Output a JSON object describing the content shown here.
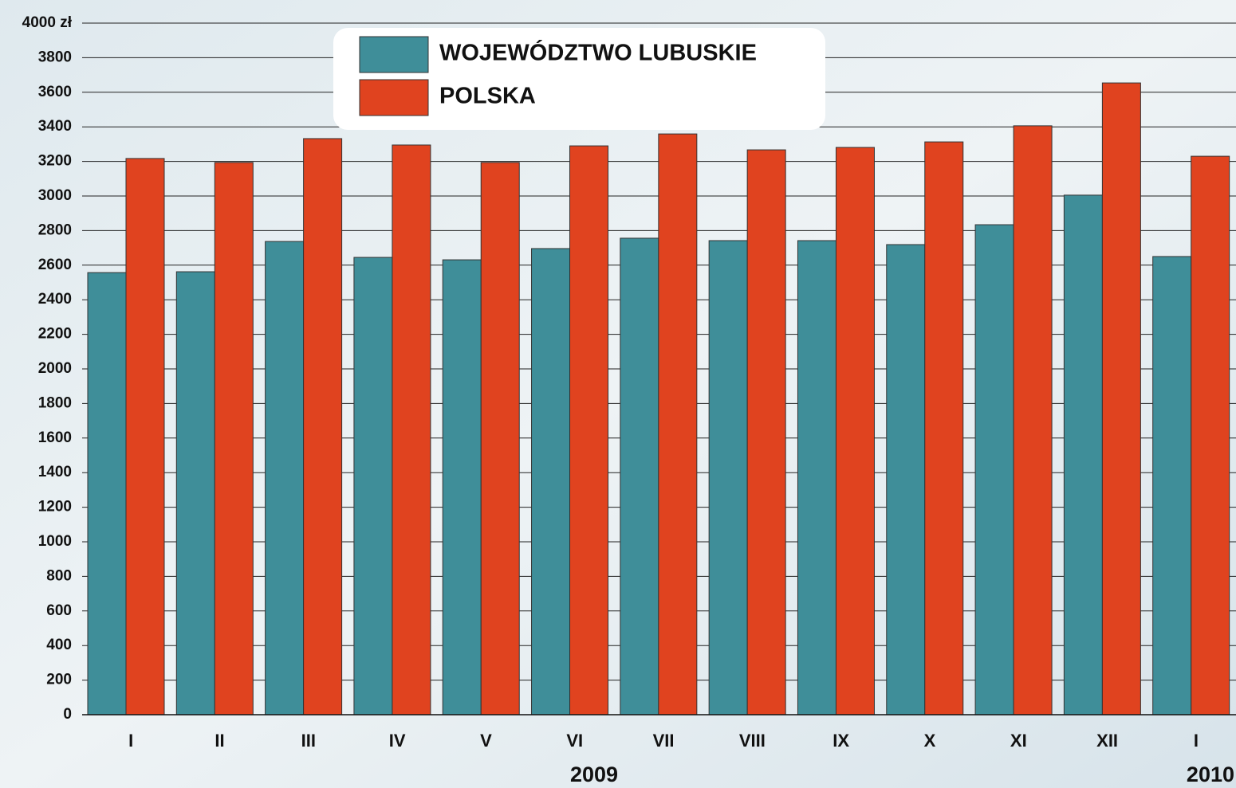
{
  "chart_data": {
    "type": "bar",
    "categories": [
      "I",
      "II",
      "III",
      "IV",
      "V",
      "VI",
      "VII",
      "VIII",
      "IX",
      "X",
      "XI",
      "XII",
      "I"
    ],
    "years": [
      "2009",
      "2010"
    ],
    "series": [
      {
        "name": "WOJEWÓDZTWO LUBUSKIE",
        "color": "#3f8e99",
        "values": [
          2557,
          2562,
          2737,
          2645,
          2631,
          2696,
          2756,
          2742,
          2742,
          2719,
          2834,
          3005,
          2650
        ]
      },
      {
        "name": "POLSKA",
        "color": "#e0431f",
        "values": [
          3217,
          3194,
          3332,
          3295,
          3194,
          3290,
          3359,
          3267,
          3281,
          3313,
          3406,
          3654,
          3230
        ]
      }
    ],
    "ylim": [
      0,
      4000
    ],
    "yticks": [
      0,
      200,
      400,
      600,
      800,
      1000,
      1200,
      1400,
      1600,
      1800,
      2000,
      2200,
      2400,
      2600,
      2800,
      3000,
      3200,
      3400,
      3600,
      3800,
      {
        "value": 4000,
        "label": "4000 zł"
      }
    ],
    "grid": true
  }
}
